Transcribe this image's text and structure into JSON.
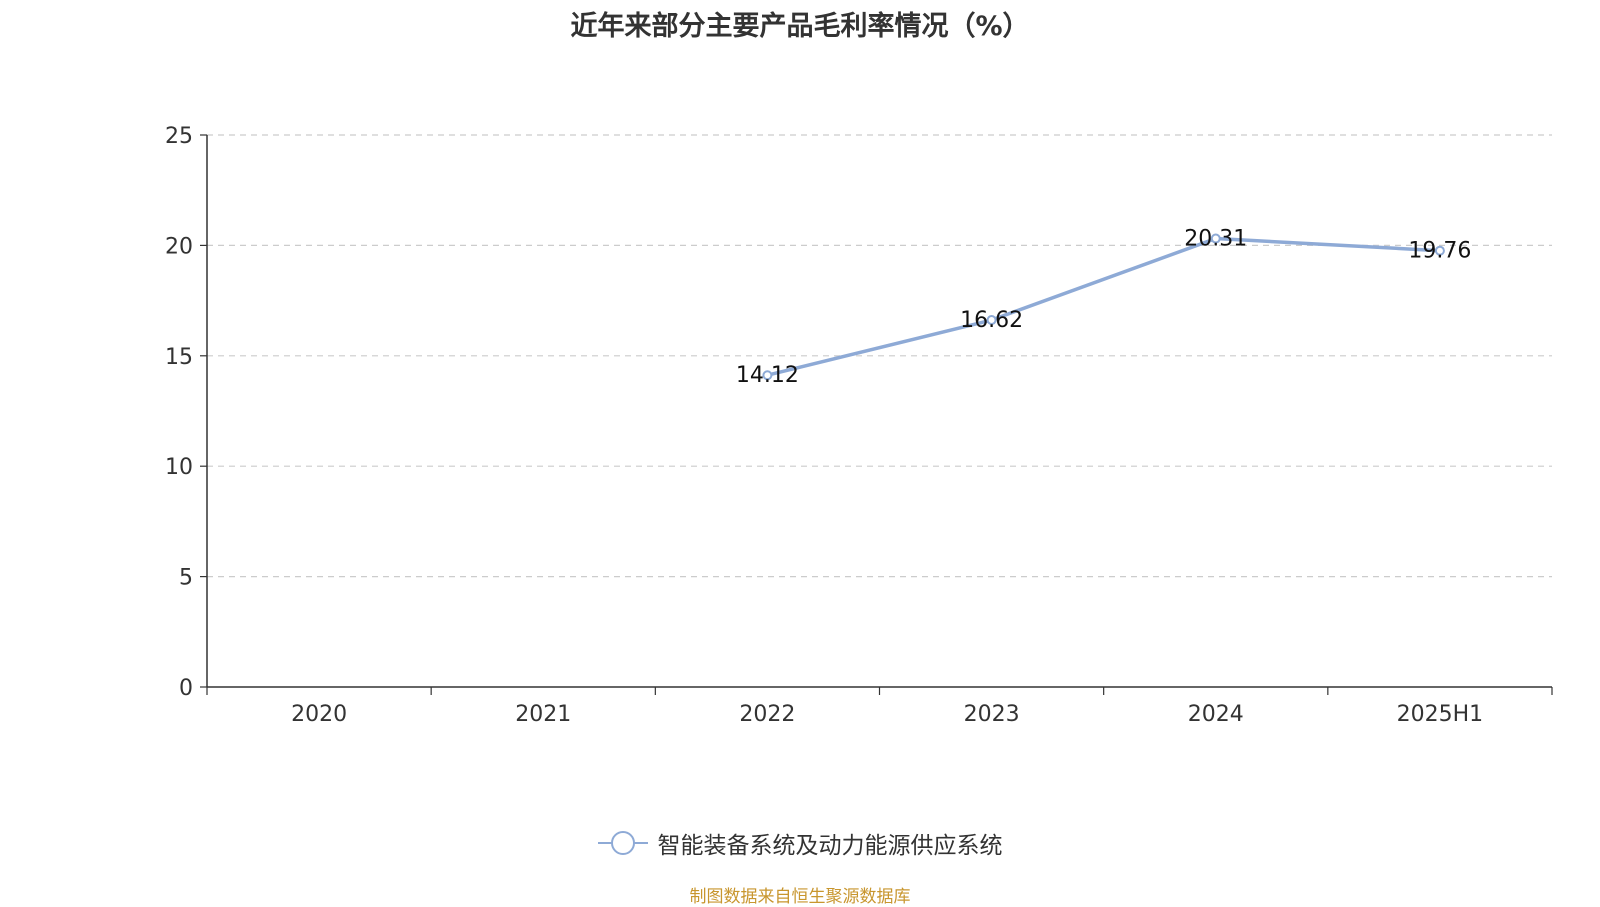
{
  "chart_data": {
    "type": "line",
    "title": "近年来部分主要产品毛利率情况（%）",
    "categories": [
      "2020",
      "2021",
      "2022",
      "2023",
      "2024",
      "2025H1"
    ],
    "series": [
      {
        "name": "智能装备系统及动力能源供应系统",
        "values": [
          null,
          null,
          14.12,
          16.62,
          20.31,
          19.76
        ],
        "labels": [
          null,
          null,
          "14.12",
          "16.62",
          "20.31",
          "19.76"
        ],
        "color": "#8eaad6"
      }
    ],
    "y_ticks": [
      "0",
      "5",
      "10",
      "15",
      "20",
      "25"
    ],
    "ylim": [
      0,
      25
    ],
    "grid": true,
    "legend_position": "bottom"
  },
  "source_note": "制图数据来自恒生聚源数据库"
}
